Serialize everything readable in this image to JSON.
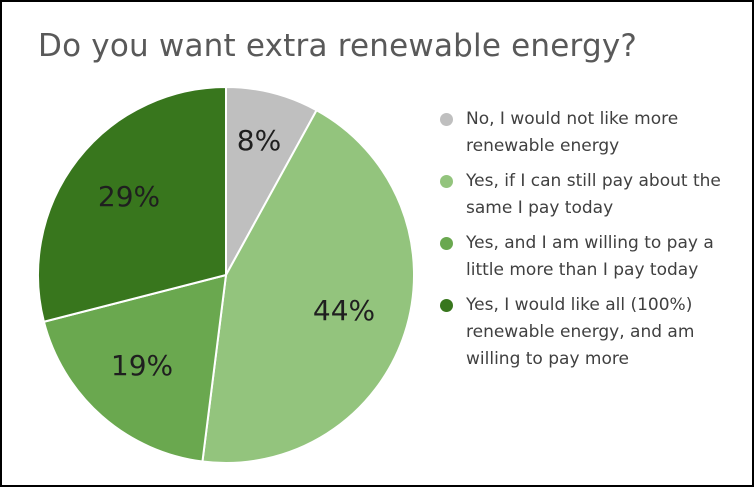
{
  "chart_data": {
    "type": "pie",
    "title": "Do you want extra renewable energy?",
    "legend_position": "right",
    "slices": [
      {
        "label": "No, I would not like more renewable energy",
        "value": 8,
        "value_label": "8%",
        "color": "#bfbfbf"
      },
      {
        "label": "Yes, if I can still pay about the same I pay today",
        "value": 44,
        "value_label": "44%",
        "color": "#93c47d"
      },
      {
        "label": "Yes, and I am willing to pay a little more than I pay today",
        "value": 19,
        "value_label": "19%",
        "color": "#6aa84f"
      },
      {
        "label": "Yes, I would like all (100%) renewable energy, and am willing to pay more",
        "value": 29,
        "value_label": "29%",
        "color": "#38761d"
      }
    ]
  }
}
